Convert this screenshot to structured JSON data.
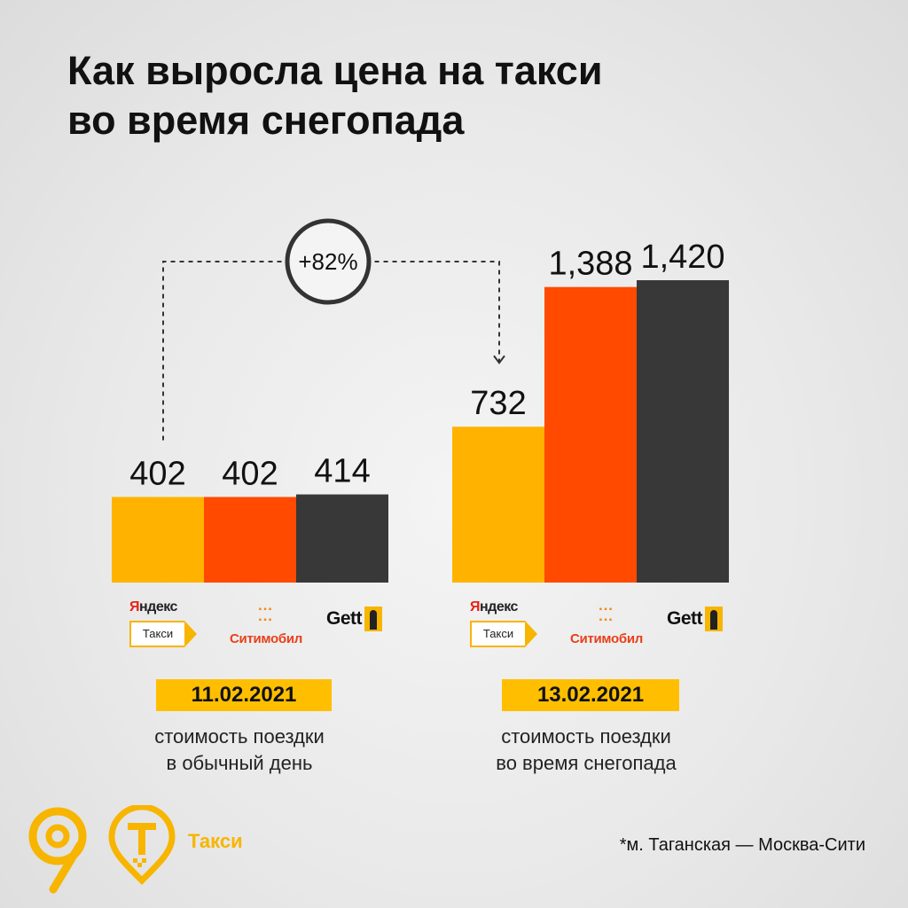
{
  "title_lines": [
    "Как выросла цена на такси",
    "во время снегопада"
  ],
  "chart_data": {
    "type": "bar",
    "groups": [
      {
        "date": "11.02.2021",
        "caption": [
          "стоимость поездки",
          "в обычный день"
        ],
        "bars": [
          {
            "brand": "Яндекс Такси",
            "value": 402,
            "label": "402",
            "color": "#FFB300"
          },
          {
            "brand": "Ситимобил",
            "value": 402,
            "label": "402",
            "color": "#FF4A00"
          },
          {
            "brand": "Gett",
            "value": 414,
            "label": "414",
            "color": "#383838"
          }
        ]
      },
      {
        "date": "13.02.2021",
        "caption": [
          "стоимость поездки",
          "во время снегопада"
        ],
        "bars": [
          {
            "brand": "Яндекс Такси",
            "value": 732,
            "label": "732",
            "color": "#FFB300"
          },
          {
            "brand": "Ситимобил",
            "value": 1388,
            "label": "1,388",
            "color": "#FF4A00"
          },
          {
            "brand": "Gett",
            "value": 1420,
            "label": "1,420",
            "color": "#383838"
          }
        ]
      }
    ],
    "annotation": {
      "text": "+82%",
      "from": "11.02.2021 Яндекс Такси",
      "to": "13.02.2021 Яндекс Такси"
    }
  },
  "brand_logos": {
    "yandex_word": "Яндекс",
    "yandex_box": "Такси",
    "citi_word": "Ситимобил",
    "gett_word": "Gett"
  },
  "footer": {
    "logo_label": "Такси",
    "footnote": "*м. Таганская — Москва-Сити"
  },
  "colors": {
    "yellow": "#FFB300",
    "orange": "#FF4A00",
    "dark": "#383838",
    "accent": "#F7B500"
  }
}
